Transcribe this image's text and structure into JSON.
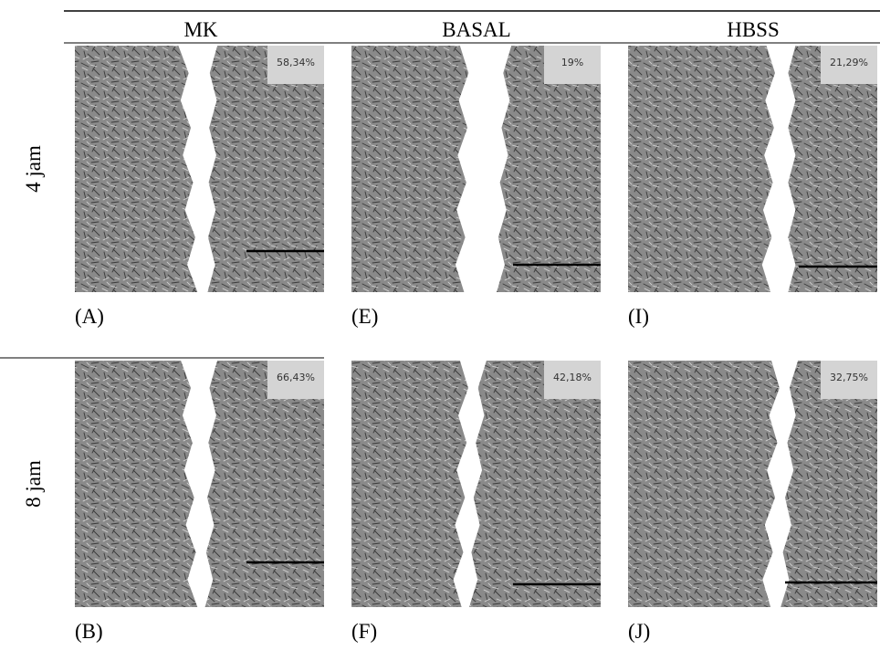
{
  "columns": [
    "MK",
    "BASAL",
    "HBSS"
  ],
  "rows": [
    {
      "label": "4 jam",
      "panels": [
        {
          "percent": "58,34%",
          "letter": "(A)"
        },
        {
          "percent": "19%",
          "letter": "(E)"
        },
        {
          "percent": "21,29%",
          "letter": "(I)"
        }
      ]
    },
    {
      "label": "8 jam",
      "panels": [
        {
          "percent": "66,43%",
          "letter": "(B)"
        },
        {
          "percent": "42,18%",
          "letter": "(F)"
        },
        {
          "percent": "32,75%",
          "letter": "(J)"
        }
      ]
    }
  ]
}
